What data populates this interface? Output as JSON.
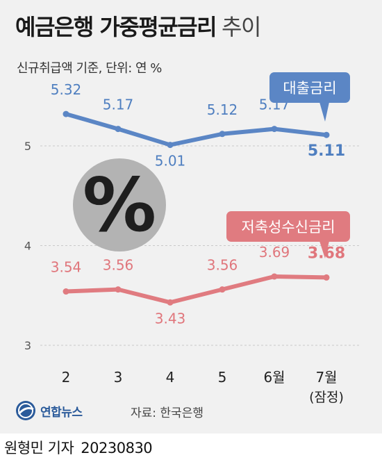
{
  "header": {
    "title": "예금은행 가중평균금리",
    "title_suffix": "추이",
    "subtitle": "신규취급액 기준, 단위: 연 %"
  },
  "chart_data": {
    "type": "line",
    "categories": [
      "2",
      "3",
      "4",
      "5",
      "6월",
      "7월"
    ],
    "category_sublabels": [
      "",
      "",
      "",
      "",
      "",
      "(잠정)"
    ],
    "y_ticks": [
      "5",
      "4",
      "3"
    ],
    "ylim": [
      3,
      5.8
    ],
    "grid": true,
    "series": [
      {
        "name": "대출금리",
        "values": [
          5.32,
          5.17,
          5.01,
          5.12,
          5.17,
          5.11
        ],
        "labels": [
          "5.32",
          "5.17",
          "5.01",
          "5.12",
          "5.17",
          "5.11"
        ],
        "color": "#5b86c5",
        "label_color": "#4f7fc0"
      },
      {
        "name": "저축성수신금리",
        "values": [
          3.54,
          3.56,
          3.43,
          3.56,
          3.69,
          3.68
        ],
        "labels": [
          "3.54",
          "3.56",
          "3.43",
          "3.56",
          "3.69",
          "3.68"
        ],
        "color": "#e07b80",
        "label_color": "#e0767c"
      }
    ],
    "percent_badge": "%"
  },
  "footer": {
    "logo_text": "연합뉴스",
    "source": "자료: 한국은행",
    "byline_name": "원형민 기자",
    "byline_date": "20230830"
  },
  "colors": {
    "background": "#f1f1f1",
    "grid": "#c9c9c9",
    "badge": "#b3b3b3"
  }
}
